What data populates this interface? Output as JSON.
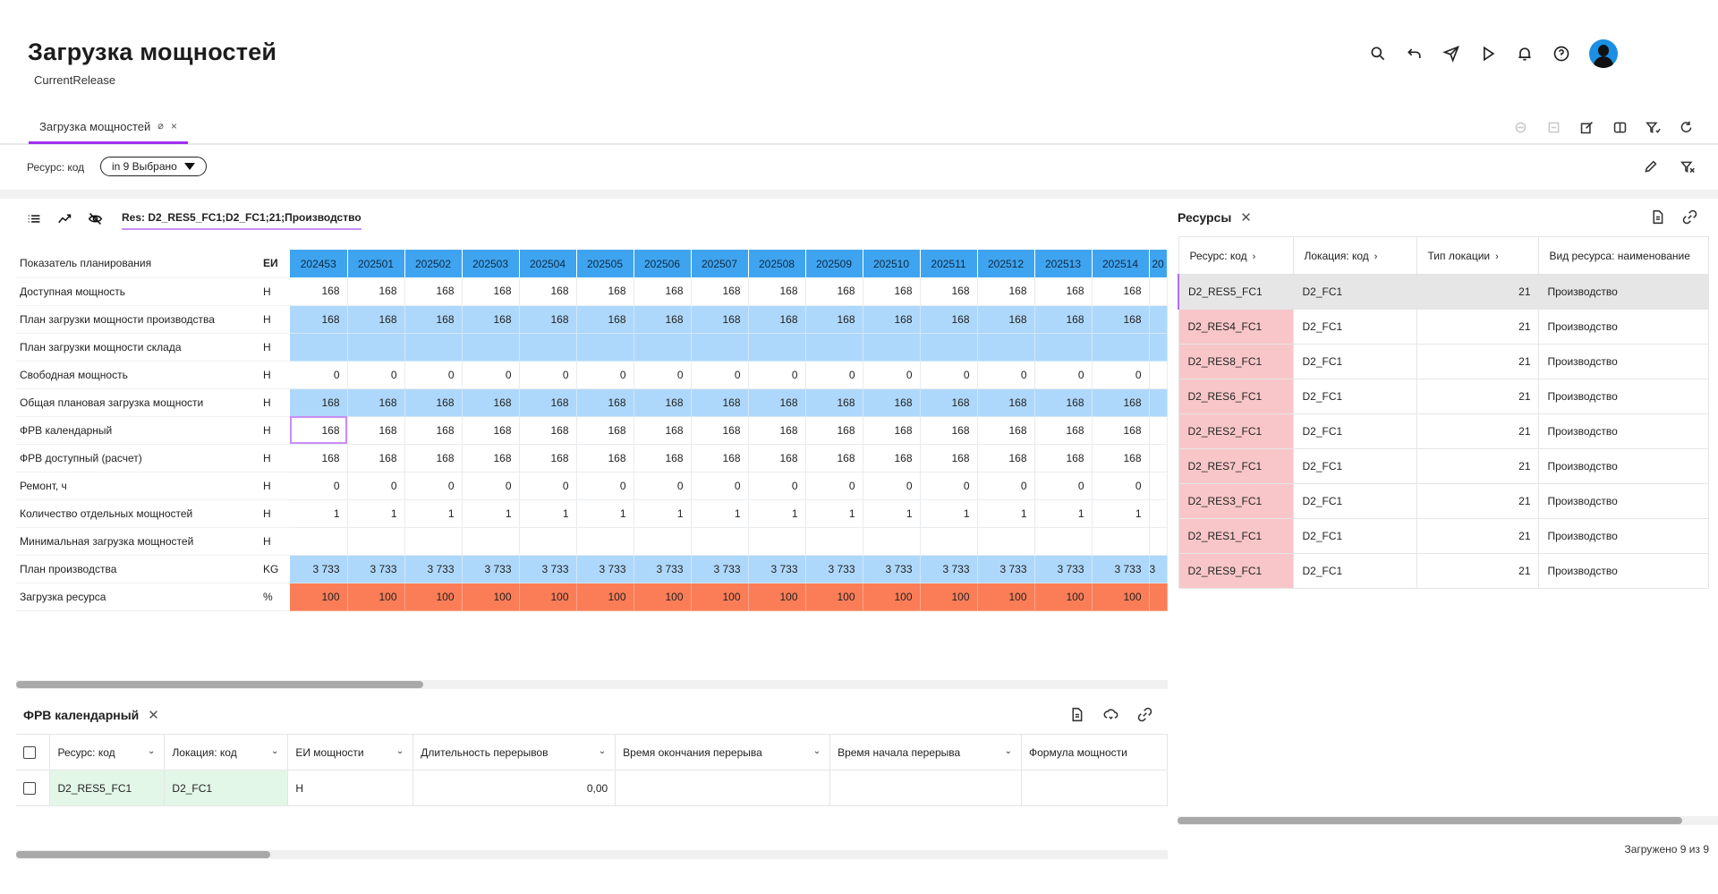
{
  "header": {
    "title": "Загрузка мощностей",
    "subtitle": "CurrentRelease",
    "icons": [
      "search-icon",
      "undo-icon",
      "send-icon",
      "play-icon",
      "bell-icon",
      "help-icon",
      "avatar"
    ]
  },
  "tabs": [
    {
      "label": "Загрузка мощностей",
      "pin": "⌀",
      "close": "×"
    }
  ],
  "filter": {
    "label": "Ресурс: код",
    "chip": "in 9 Выбрано"
  },
  "main": {
    "context": "Res: D2_RES5_FC1;D2_FC1;21;Производство",
    "header_label": "Показатель планирования",
    "header_unit": "ЕИ",
    "periods": [
      "202453",
      "202501",
      "202502",
      "202503",
      "202504",
      "202505",
      "202506",
      "202507",
      "202508",
      "202509",
      "202510",
      "202511",
      "202512",
      "202513",
      "202514",
      "20"
    ],
    "rows": [
      {
        "label": "Доступная мощность",
        "unit": "Н",
        "style": "plain",
        "values": [
          "168",
          "168",
          "168",
          "168",
          "168",
          "168",
          "168",
          "168",
          "168",
          "168",
          "168",
          "168",
          "168",
          "168",
          "168",
          ""
        ]
      },
      {
        "label": "План загрузки мощности производства",
        "unit": "Н",
        "style": "blue",
        "values": [
          "168",
          "168",
          "168",
          "168",
          "168",
          "168",
          "168",
          "168",
          "168",
          "168",
          "168",
          "168",
          "168",
          "168",
          "168",
          ""
        ]
      },
      {
        "label": "План загрузки мощности склада",
        "unit": "Н",
        "style": "blue",
        "values": [
          "",
          "",
          "",
          "",
          "",
          "",
          "",
          "",
          "",
          "",
          "",
          "",
          "",
          "",
          "",
          ""
        ]
      },
      {
        "label": "Свободная мощность",
        "unit": "Н",
        "style": "plain",
        "values": [
          "0",
          "0",
          "0",
          "0",
          "0",
          "0",
          "0",
          "0",
          "0",
          "0",
          "0",
          "0",
          "0",
          "0",
          "0",
          ""
        ]
      },
      {
        "label": "Общая плановая загрузка мощности",
        "unit": "Н",
        "style": "blue",
        "values": [
          "168",
          "168",
          "168",
          "168",
          "168",
          "168",
          "168",
          "168",
          "168",
          "168",
          "168",
          "168",
          "168",
          "168",
          "168",
          ""
        ]
      },
      {
        "label": "ФРВ календарный",
        "unit": "Н",
        "style": "plain",
        "values": [
          "168",
          "168",
          "168",
          "168",
          "168",
          "168",
          "168",
          "168",
          "168",
          "168",
          "168",
          "168",
          "168",
          "168",
          "168",
          ""
        ]
      },
      {
        "label": "ФРВ доступный (расчет)",
        "unit": "Н",
        "style": "plain",
        "values": [
          "168",
          "168",
          "168",
          "168",
          "168",
          "168",
          "168",
          "168",
          "168",
          "168",
          "168",
          "168",
          "168",
          "168",
          "168",
          ""
        ]
      },
      {
        "label": "Ремонт, ч",
        "unit": "Н",
        "style": "plain",
        "values": [
          "0",
          "0",
          "0",
          "0",
          "0",
          "0",
          "0",
          "0",
          "0",
          "0",
          "0",
          "0",
          "0",
          "0",
          "0",
          ""
        ]
      },
      {
        "label": "Количество отдельных мощностей",
        "unit": "Н",
        "style": "plain",
        "values": [
          "1",
          "1",
          "1",
          "1",
          "1",
          "1",
          "1",
          "1",
          "1",
          "1",
          "1",
          "1",
          "1",
          "1",
          "1",
          ""
        ]
      },
      {
        "label": "Минимальная загрузка мощностей",
        "unit": "Н",
        "style": "plain",
        "values": [
          "",
          "",
          "",
          "",
          "",
          "",
          "",
          "",
          "",
          "",
          "",
          "",
          "",
          "",
          "",
          ""
        ]
      },
      {
        "label": "План производства",
        "unit": "KG",
        "style": "blue",
        "values": [
          "3 733",
          "3 733",
          "3 733",
          "3 733",
          "3 733",
          "3 733",
          "3 733",
          "3 733",
          "3 733",
          "3 733",
          "3 733",
          "3 733",
          "3 733",
          "3 733",
          "3 733",
          "3"
        ]
      },
      {
        "label": "Загрузка ресурса",
        "unit": "%",
        "style": "orange",
        "values": [
          "100",
          "100",
          "100",
          "100",
          "100",
          "100",
          "100",
          "100",
          "100",
          "100",
          "100",
          "100",
          "100",
          "100",
          "100",
          ""
        ]
      }
    ]
  },
  "bottom": {
    "title": "ФРВ календарный",
    "columns": [
      "Ресурс: код",
      "Локация: код",
      "ЕИ мощности",
      "Длительность перерывов",
      "Время окончания перерыва",
      "Время начала перерыва",
      "Формула мощности"
    ],
    "row": [
      "D2_RES5_FC1",
      "D2_FC1",
      "Н",
      "0,00",
      "",
      "",
      ""
    ]
  },
  "resources": {
    "title": "Ресурсы",
    "columns": [
      "Ресурс: код",
      "Локация: код",
      "Тип локации",
      "Вид ресурса: наименование"
    ],
    "rows": [
      [
        "D2_RES5_FC1",
        "D2_FC1",
        "21",
        "Производство"
      ],
      [
        "D2_RES4_FC1",
        "D2_FC1",
        "21",
        "Производство"
      ],
      [
        "D2_RES8_FC1",
        "D2_FC1",
        "21",
        "Производство"
      ],
      [
        "D2_RES6_FC1",
        "D2_FC1",
        "21",
        "Производство"
      ],
      [
        "D2_RES2_FC1",
        "D2_FC1",
        "21",
        "Производство"
      ],
      [
        "D2_RES7_FC1",
        "D2_FC1",
        "21",
        "Производство"
      ],
      [
        "D2_RES3_FC1",
        "D2_FC1",
        "21",
        "Производство"
      ],
      [
        "D2_RES1_FC1",
        "D2_FC1",
        "21",
        "Производство"
      ],
      [
        "D2_RES9_FC1",
        "D2_FC1",
        "21",
        "Производство"
      ]
    ],
    "footer": "Загружено 9 из 9"
  }
}
